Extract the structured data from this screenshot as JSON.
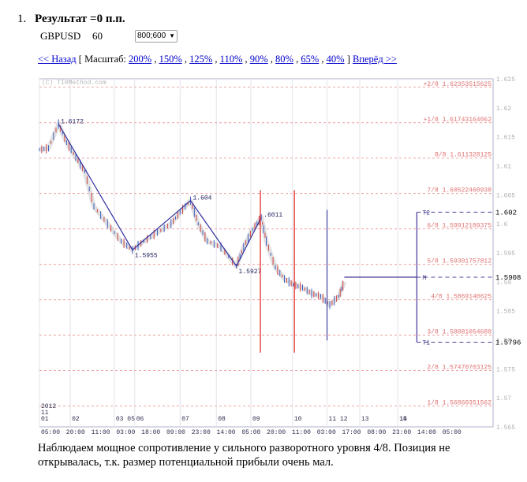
{
  "header": {
    "number": "1.",
    "title": "Результат =0 п.п."
  },
  "instrument": {
    "symbol": "GBPUSD",
    "period": "60"
  },
  "size_select": {
    "value": "800;600"
  },
  "nav": {
    "back": "<< Назад",
    "open": "[ Масштаб:",
    "zoom": [
      "200%",
      "150%",
      "125%",
      "110%",
      "90%",
      "80%",
      "65%",
      "40%"
    ],
    "close": "]",
    "forward": "Вперёд >>"
  },
  "chart_data": {
    "type": "line",
    "watermark": "(C) TIRMethod.com",
    "ylim": [
      1.565,
      1.625
    ],
    "y_ticks": [
      1.625,
      1.62,
      1.615,
      1.61,
      1.605,
      1.6,
      1.595,
      1.59,
      1.585,
      1.58,
      1.575,
      1.57,
      1.565
    ],
    "x_day_labels": [
      "2012\n11\n01",
      "02",
      "03 05",
      "06",
      "07",
      "08",
      "09",
      "10",
      "11 12",
      "13",
      "14",
      "15"
    ],
    "x_time_labels": [
      "05:00",
      "20:00",
      "11:00",
      "03:00",
      "18:00",
      "09:00",
      "23:00",
      "14:00",
      "05:00",
      "20:00",
      "11:00",
      "03:00",
      "17:00",
      "08:00",
      "23:00",
      "14:00",
      "05:00"
    ],
    "murrey_levels": [
      {
        "label": "+2/8",
        "value": 1.62353515625
      },
      {
        "label": "+1/8",
        "value": 1.61743164062
      },
      {
        "label": "8/8",
        "value": 1.611328125
      },
      {
        "label": "7/8",
        "value": 1.60522460938
      },
      {
        "label": "6/8",
        "value": 1.59912109375
      },
      {
        "label": "5/8",
        "value": 1.59301757812
      },
      {
        "label": "4/8",
        "value": 1.5869140625
      },
      {
        "label": "3/8",
        "value": 1.58081054688
      },
      {
        "label": "2/8",
        "value": 1.57470703125
      },
      {
        "label": "1/8",
        "value": 1.56860351562
      }
    ],
    "zigzag": [
      {
        "x": 0.042,
        "price": 1.6172,
        "label": "1.6172"
      },
      {
        "x": 0.205,
        "price": 1.5955,
        "label": "1.5955"
      },
      {
        "x": 0.333,
        "price": 1.604,
        "label": "1.604"
      },
      {
        "x": 0.434,
        "price": 1.5927,
        "label": "1.5927"
      },
      {
        "x": 0.489,
        "price": 1.6011,
        "label": ".6011"
      }
    ],
    "red_vlines": [
      0.487,
      0.562
    ],
    "purple_vline": 0.634,
    "trade_levels": [
      {
        "label": "T2",
        "value": 1.602,
        "price_label": "1.602"
      },
      {
        "label": "M",
        "value": 1.5908,
        "price_label": "1.5908"
      },
      {
        "label": "T1",
        "value": 1.5796,
        "price_label": "1.5796"
      }
    ]
  },
  "caption": "Наблюдаем мощное сопротивление  у сильного разворотного уровня 4/8. Позиция не открывалась, т.к. размер потенциальной прибыли очень мал."
}
